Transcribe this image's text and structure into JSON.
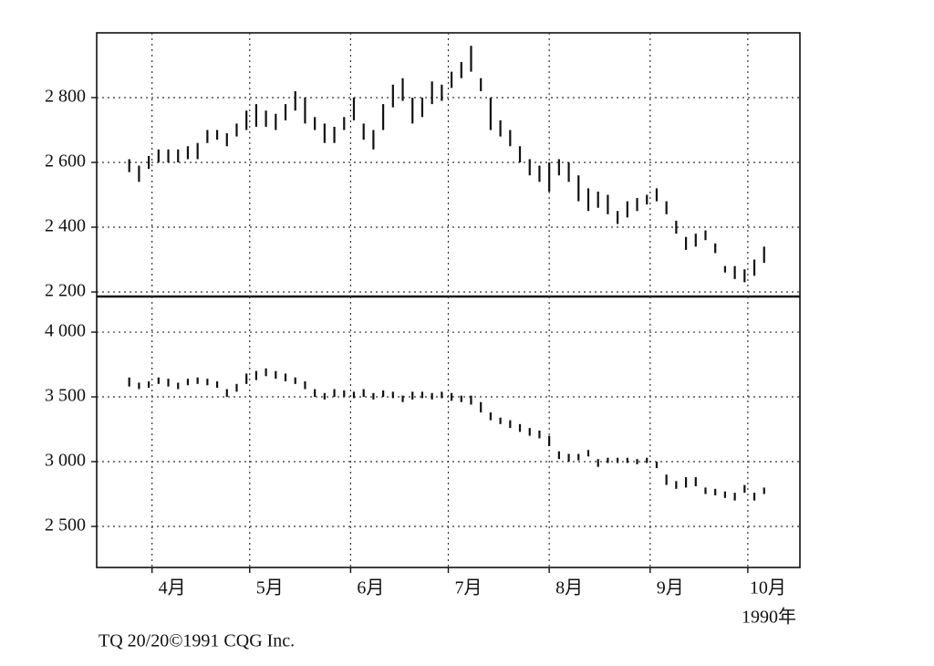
{
  "chart_data": [
    {
      "type": "hilo",
      "x": [
        84,
        87,
        90,
        93,
        96,
        99,
        102,
        105,
        108,
        111,
        114,
        117,
        120,
        123,
        126,
        129,
        132,
        135,
        138,
        141,
        144,
        147,
        150,
        153,
        156,
        159,
        162,
        165,
        168,
        171,
        174,
        177,
        180,
        183,
        186,
        189,
        192,
        195,
        198,
        201,
        204,
        207,
        210,
        213,
        216,
        219,
        222,
        225,
        228,
        231,
        234,
        237,
        240,
        243,
        246,
        249,
        252,
        255,
        258,
        261,
        264,
        267,
        270,
        273,
        276,
        279
      ],
      "high": [
        2610,
        2590,
        2620,
        2640,
        2640,
        2640,
        2650,
        2660,
        2700,
        2700,
        2690,
        2720,
        2760,
        2780,
        2760,
        2750,
        2780,
        2820,
        2800,
        2740,
        2720,
        2710,
        2740,
        2800,
        2720,
        2700,
        2780,
        2840,
        2860,
        2800,
        2800,
        2850,
        2840,
        2880,
        2910,
        2960,
        2860,
        2800,
        2730,
        2700,
        2650,
        2610,
        2590,
        2600,
        2610,
        2600,
        2560,
        2520,
        2510,
        2500,
        2450,
        2480,
        2490,
        2500,
        2520,
        2480,
        2420,
        2370,
        2380,
        2390,
        2350,
        2280,
        2280,
        2270,
        2300,
        2340
      ],
      "low": [
        2570,
        2540,
        2580,
        2600,
        2600,
        2600,
        2610,
        2610,
        2660,
        2670,
        2650,
        2680,
        2700,
        2710,
        2710,
        2700,
        2730,
        2760,
        2720,
        2700,
        2660,
        2660,
        2700,
        2730,
        2670,
        2640,
        2700,
        2770,
        2790,
        2720,
        2740,
        2780,
        2790,
        2830,
        2860,
        2880,
        2820,
        2700,
        2680,
        2650,
        2600,
        2560,
        2540,
        2510,
        2560,
        2540,
        2480,
        2450,
        2460,
        2440,
        2410,
        2430,
        2450,
        2470,
        2480,
        2440,
        2380,
        2330,
        2340,
        2360,
        2320,
        2260,
        2240,
        2230,
        2250,
        2290
      ],
      "color": "#111111",
      "ylim": [
        2186,
        3000
      ],
      "yticks": [
        {
          "value": 2200,
          "label": "2 200"
        },
        {
          "value": 2400,
          "label": "2 400"
        },
        {
          "value": 2600,
          "label": "2 600"
        },
        {
          "value": 2800,
          "label": "2 800"
        }
      ],
      "xlim": [
        74,
        290
      ],
      "xticks": [
        91,
        121,
        152,
        182,
        213,
        244,
        274
      ],
      "grid": true
    },
    {
      "type": "hilo",
      "x": [
        84,
        87,
        90,
        93,
        96,
        99,
        102,
        105,
        108,
        111,
        114,
        117,
        120,
        123,
        126,
        129,
        132,
        135,
        138,
        141,
        144,
        147,
        150,
        153,
        156,
        159,
        162,
        165,
        168,
        171,
        174,
        177,
        180,
        183,
        186,
        189,
        192,
        195,
        198,
        201,
        204,
        207,
        210,
        213,
        216,
        219,
        222,
        225,
        228,
        231,
        234,
        237,
        240,
        243,
        246,
        249,
        252,
        255,
        258,
        261,
        264,
        267,
        270,
        273,
        276,
        279
      ],
      "high": [
        3650,
        3610,
        3620,
        3650,
        3640,
        3610,
        3640,
        3650,
        3640,
        3620,
        3560,
        3600,
        3680,
        3700,
        3720,
        3700,
        3680,
        3650,
        3620,
        3560,
        3530,
        3560,
        3550,
        3540,
        3560,
        3530,
        3550,
        3540,
        3510,
        3540,
        3540,
        3530,
        3540,
        3530,
        3510,
        3510,
        3460,
        3380,
        3340,
        3320,
        3290,
        3260,
        3240,
        3200,
        3080,
        3060,
        3060,
        3090,
        3020,
        3030,
        3030,
        3030,
        3020,
        3030,
        3000,
        2900,
        2850,
        2880,
        2880,
        2800,
        2790,
        2770,
        2760,
        2820,
        2760,
        2800
      ],
      "low": [
        3580,
        3560,
        3570,
        3600,
        3580,
        3560,
        3590,
        3600,
        3590,
        3570,
        3500,
        3540,
        3600,
        3630,
        3660,
        3640,
        3620,
        3600,
        3560,
        3500,
        3480,
        3500,
        3500,
        3490,
        3500,
        3480,
        3500,
        3490,
        3460,
        3480,
        3490,
        3480,
        3490,
        3470,
        3460,
        3440,
        3380,
        3320,
        3290,
        3260,
        3230,
        3200,
        3180,
        3120,
        3020,
        3000,
        3010,
        3040,
        2960,
        2990,
        2990,
        2990,
        2980,
        2990,
        2950,
        2820,
        2790,
        2800,
        2810,
        2750,
        2740,
        2720,
        2700,
        2760,
        2700,
        2750
      ],
      "color": "#111111",
      "ylim": [
        2183,
        4275
      ],
      "yticks": [
        {
          "value": 2500,
          "label": "2 500"
        },
        {
          "value": 3000,
          "label": "3 000"
        },
        {
          "value": 3500,
          "label": "3 500"
        },
        {
          "value": 4000,
          "label": "4 000"
        }
      ],
      "xlim": [
        74,
        290
      ],
      "xticks": [
        {
          "value": 91,
          "label": "4月"
        },
        {
          "value": 121,
          "label": "5月"
        },
        {
          "value": 152,
          "label": "6月"
        },
        {
          "value": 182,
          "label": "7月"
        },
        {
          "value": 213,
          "label": "8月"
        },
        {
          "value": 244,
          "label": "9月"
        },
        {
          "value": 274,
          "label": "10月"
        }
      ],
      "xlabel": "1990年",
      "grid": true
    }
  ],
  "footer": "TQ 20/20©1991 CQG Inc."
}
